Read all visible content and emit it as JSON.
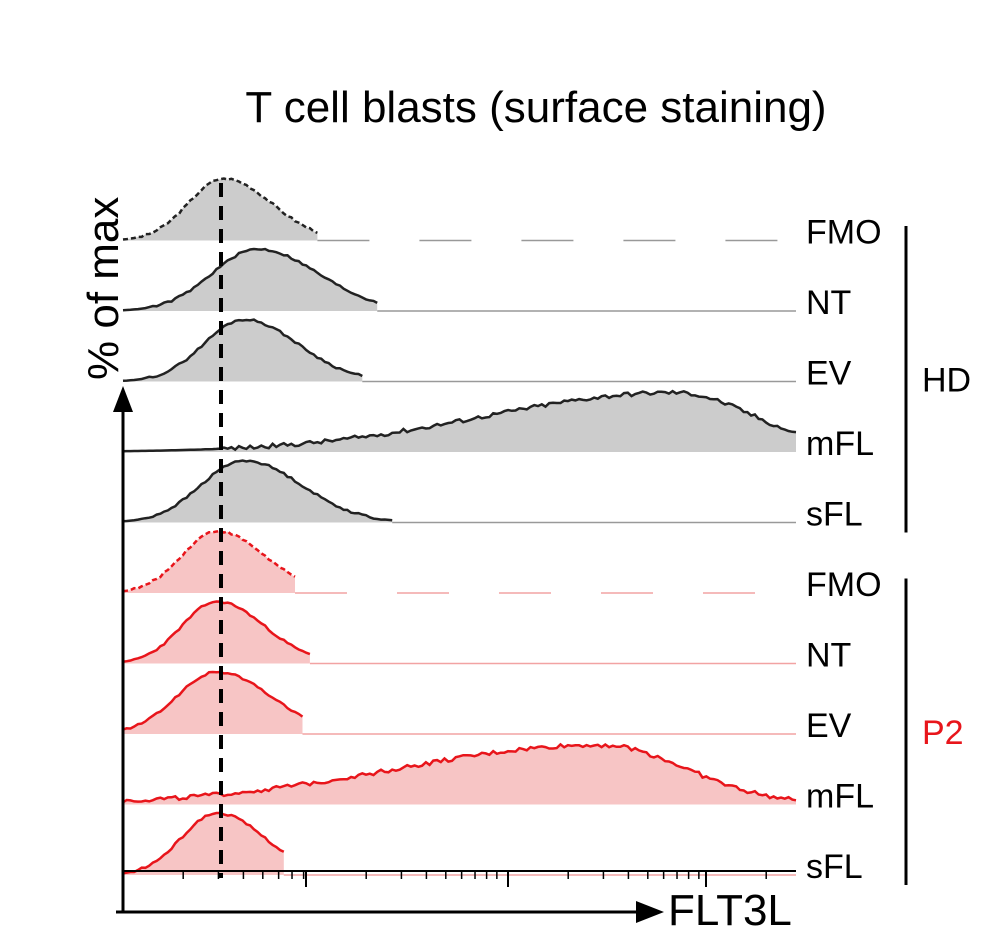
{
  "chart_data": {
    "type": "area",
    "title": "T cell blasts (surface staining)",
    "xlabel": "FLT3L",
    "ylabel": "% of max",
    "x_scale": "log",
    "reference_line": "dashed",
    "groups": [
      {
        "name": "HD",
        "color": "#000000",
        "line_color": "#222222",
        "fill_color": "#cccccc",
        "series": [
          {
            "name": "FMO",
            "style": "dashed",
            "peak": 0.15,
            "width": 0.07,
            "tail_end": 0.29
          },
          {
            "name": "NT",
            "style": "solid",
            "peak": 0.2,
            "width": 0.09,
            "tail_end": 0.38
          },
          {
            "name": "EV",
            "style": "solid",
            "peak": 0.18,
            "width": 0.08,
            "tail_end": 0.36
          },
          {
            "name": "mFL",
            "style": "solid",
            "peak": 0.82,
            "width": 0.28,
            "tail_end": 1.0,
            "broad": true
          },
          {
            "name": "sFL",
            "style": "solid",
            "peak": 0.18,
            "width": 0.085,
            "tail_end": 0.4
          }
        ]
      },
      {
        "name": "P2",
        "color": "#e8151b",
        "line_color": "#e8151b",
        "fill_color": "#f7c5c5",
        "series": [
          {
            "name": "FMO",
            "style": "dashed",
            "peak": 0.14,
            "width": 0.07,
            "tail_end": 0.26
          },
          {
            "name": "NT",
            "style": "solid",
            "peak": 0.14,
            "width": 0.07,
            "tail_end": 0.28
          },
          {
            "name": "EV",
            "style": "solid",
            "peak": 0.14,
            "width": 0.08,
            "tail_end": 0.27
          },
          {
            "name": "mFL",
            "style": "solid",
            "peak": 0.71,
            "width": 0.3,
            "tail_end": 1.0,
            "broad": true
          },
          {
            "name": "sFL",
            "style": "solid",
            "peak": 0.14,
            "width": 0.07,
            "tail_end": 0.24
          }
        ]
      }
    ]
  }
}
